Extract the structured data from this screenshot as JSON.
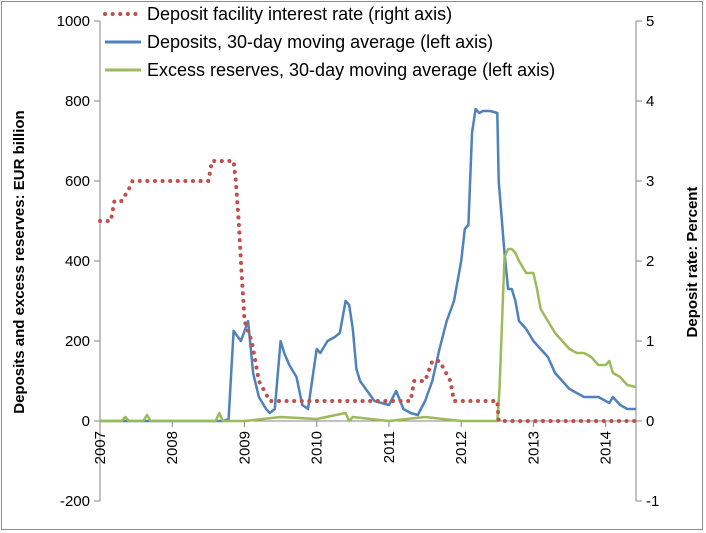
{
  "chart_data": {
    "type": "line",
    "left_axis": {
      "label": "Deposits and excess reserves: EUR billion",
      "min": -200,
      "max": 1000,
      "ticks": [
        -200,
        0,
        200,
        400,
        600,
        800,
        1000
      ]
    },
    "right_axis": {
      "label": "Deposit rate: Percent",
      "min": -1,
      "max": 5,
      "ticks": [
        -1,
        0,
        1,
        2,
        3,
        4,
        5
      ]
    },
    "x_axis": {
      "min": 2007.0,
      "max": 2014.42,
      "tick_labels": [
        "2007",
        "2008",
        "2009",
        "2010",
        "2011",
        "2012",
        "2013",
        "2014"
      ]
    },
    "legend": {
      "placement": "top"
    },
    "series": [
      {
        "name": "Deposit facility interest rate (right axis)",
        "axis": "right",
        "color": "#c0504d",
        "style": "dotted",
        "x": [
          2007.0,
          2007.15,
          2007.2,
          2007.3,
          2007.4,
          2007.45,
          2007.9,
          2008.5,
          2008.55,
          2008.85,
          2008.88,
          2008.92,
          2008.95,
          2009.0,
          2009.1,
          2009.2,
          2009.35,
          2010.0,
          2011.0,
          2011.3,
          2011.35,
          2011.5,
          2011.6,
          2011.7,
          2011.85,
          2011.9,
          2011.95,
          2012.0,
          2012.5,
          2012.52,
          2014.42
        ],
        "y": [
          2.5,
          2.5,
          2.75,
          2.75,
          2.9,
          3.0,
          3.0,
          3.0,
          3.25,
          3.25,
          3.0,
          2.5,
          2.0,
          1.25,
          1.0,
          0.5,
          0.25,
          0.25,
          0.25,
          0.25,
          0.5,
          0.5,
          0.75,
          0.75,
          0.5,
          0.25,
          0.25,
          0.25,
          0.25,
          0.0,
          0.0
        ]
      },
      {
        "name": "Deposits, 30-day moving average (left axis)",
        "axis": "left",
        "color": "#4f81bd",
        "style": "solid",
        "x": [
          2007.0,
          2008.7,
          2008.78,
          2008.85,
          2008.95,
          2009.05,
          2009.12,
          2009.2,
          2009.3,
          2009.35,
          2009.42,
          2009.5,
          2009.55,
          2009.62,
          2009.72,
          2009.8,
          2009.88,
          2010.0,
          2010.05,
          2010.15,
          2010.25,
          2010.32,
          2010.4,
          2010.45,
          2010.5,
          2010.55,
          2010.6,
          2010.68,
          2010.8,
          2010.9,
          2011.0,
          2011.1,
          2011.2,
          2011.25,
          2011.3,
          2011.4,
          2011.5,
          2011.6,
          2011.7,
          2011.8,
          2011.9,
          2012.0,
          2012.05,
          2012.1,
          2012.15,
          2012.2,
          2012.25,
          2012.3,
          2012.4,
          2012.5,
          2012.52,
          2012.6,
          2012.65,
          2012.7,
          2012.75,
          2012.8,
          2012.9,
          2013.0,
          2013.1,
          2013.2,
          2013.3,
          2013.4,
          2013.5,
          2013.6,
          2013.7,
          2013.8,
          2013.9,
          2014.0,
          2014.05,
          2014.1,
          2014.2,
          2014.3,
          2014.42
        ],
        "y": [
          0,
          0,
          5,
          225,
          200,
          250,
          120,
          60,
          30,
          20,
          30,
          200,
          170,
          140,
          110,
          40,
          30,
          180,
          170,
          200,
          210,
          220,
          300,
          290,
          230,
          130,
          100,
          80,
          50,
          45,
          40,
          75,
          30,
          25,
          20,
          15,
          50,
          100,
          180,
          250,
          300,
          400,
          480,
          490,
          720,
          780,
          770,
          775,
          775,
          770,
          600,
          420,
          330,
          330,
          300,
          250,
          230,
          200,
          180,
          160,
          120,
          100,
          80,
          70,
          60,
          60,
          60,
          50,
          45,
          60,
          40,
          30,
          30
        ]
      },
      {
        "name": "Excess reserves, 30-day moving average (left axis)",
        "axis": "left",
        "color": "#9bbb59",
        "style": "solid",
        "x": [
          2007.0,
          2007.3,
          2007.35,
          2007.4,
          2007.6,
          2007.65,
          2007.7,
          2008.0,
          2008.6,
          2008.65,
          2008.7,
          2009.0,
          2009.5,
          2010.0,
          2010.4,
          2010.45,
          2010.5,
          2011.0,
          2011.5,
          2012.0,
          2012.5,
          2012.53,
          2012.6,
          2012.65,
          2012.7,
          2012.75,
          2012.8,
          2012.9,
          2013.0,
          2013.05,
          2013.1,
          2013.2,
          2013.3,
          2013.4,
          2013.5,
          2013.6,
          2013.7,
          2013.8,
          2013.9,
          2014.0,
          2014.05,
          2014.1,
          2014.2,
          2014.3,
          2014.42
        ],
        "y": [
          0,
          0,
          10,
          0,
          0,
          15,
          0,
          0,
          0,
          20,
          0,
          0,
          10,
          5,
          20,
          0,
          10,
          0,
          10,
          0,
          0,
          80,
          410,
          430,
          430,
          420,
          400,
          370,
          370,
          330,
          280,
          250,
          220,
          200,
          180,
          170,
          170,
          160,
          140,
          140,
          150,
          120,
          110,
          90,
          85
        ]
      }
    ]
  }
}
